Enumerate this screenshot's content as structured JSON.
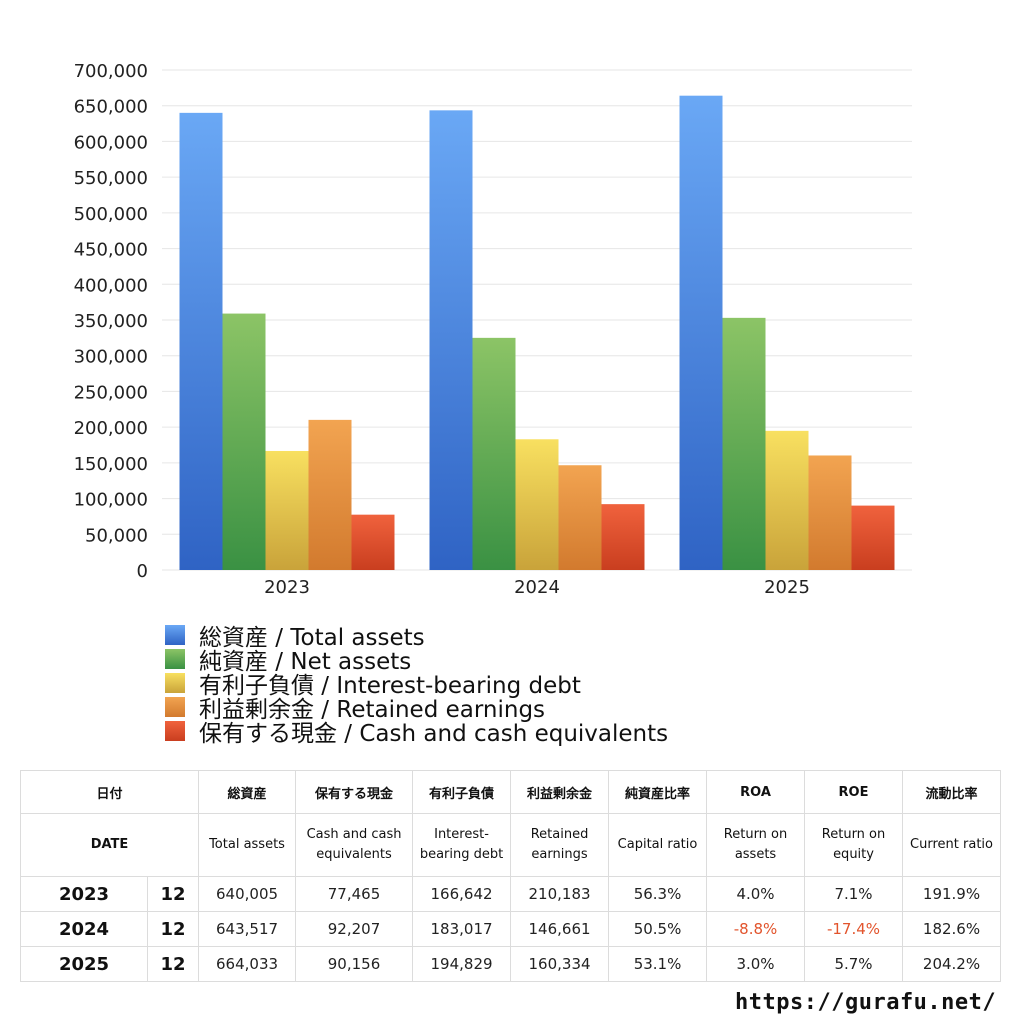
{
  "chart_data": {
    "type": "bar",
    "categories": [
      "2023",
      "2024",
      "2025"
    ],
    "series": [
      {
        "name": "総資産 / Total assets",
        "values": [
          640005,
          643517,
          664033
        ],
        "color_top": "#6aa8f5",
        "color_bottom": "#2f63c4"
      },
      {
        "name": "純資産 / Net assets",
        "values": [
          359000,
          325000,
          353000
        ],
        "color_top": "#8cc466",
        "color_bottom": "#3a9143"
      },
      {
        "name": "有利子負債 / Interest-bearing debt",
        "values": [
          166642,
          183017,
          194829
        ],
        "color_top": "#f8e060",
        "color_bottom": "#c9a33a"
      },
      {
        "name": "利益剰余金 / Retained earnings",
        "values": [
          210183,
          146661,
          160334
        ],
        "color_top": "#f2a451",
        "color_bottom": "#d27a2e"
      },
      {
        "name": "保有する現金 /  Cash and cash equivalents",
        "values": [
          77465,
          92207,
          90156
        ],
        "color_top": "#f0623d",
        "color_bottom": "#c93e1f"
      }
    ],
    "ylim": [
      0,
      700000
    ],
    "yticks": [
      "0",
      "50,000",
      "100,000",
      "150,000",
      "200,000",
      "250,000",
      "300,000",
      "350,000",
      "400,000",
      "450,000",
      "500,000",
      "550,000",
      "600,000",
      "650,000",
      "700,000"
    ],
    "ytick_values": [
      0,
      50000,
      100000,
      150000,
      200000,
      250000,
      300000,
      350000,
      400000,
      450000,
      500000,
      550000,
      600000,
      650000,
      700000
    ],
    "grid": true,
    "legend_position": "bottom"
  },
  "table": {
    "header_jp": {
      "date": "日付",
      "total_assets": "総資産",
      "cash": "保有する現金",
      "debt": "有利子負債",
      "retained": "利益剰余金",
      "capital_ratio": "純資産比率",
      "roa": "ROA",
      "roe": "ROE",
      "current_ratio": "流動比率"
    },
    "header_en": {
      "date": "DATE",
      "total_assets": "Total assets",
      "cash": "Cash and cash equivalents",
      "debt": "Interest-bearing debt",
      "retained": "Retained earnings",
      "capital_ratio": "Capital ratio",
      "roa": "Return on assets",
      "roe": "Return on equity",
      "current_ratio": "Current ratio"
    },
    "rows": [
      {
        "year": "2023",
        "month": "12",
        "total_assets": "640,005",
        "cash": "77,465",
        "debt": "166,642",
        "retained": "210,183",
        "capital_ratio": "56.3%",
        "roa": "4.0%",
        "roe": "7.1%",
        "current_ratio": "191.9%"
      },
      {
        "year": "2024",
        "month": "12",
        "total_assets": "643,517",
        "cash": "92,207",
        "debt": "183,017",
        "retained": "146,661",
        "capital_ratio": "50.5%",
        "roa": "-8.8%",
        "roe": "-17.4%",
        "current_ratio": "182.6%"
      },
      {
        "year": "2025",
        "month": "12",
        "total_assets": "664,033",
        "cash": "90,156",
        "debt": "194,829",
        "retained": "160,334",
        "capital_ratio": "53.1%",
        "roa": "3.0%",
        "roe": "5.7%",
        "current_ratio": "204.2%"
      }
    ],
    "negative_color": "#e2542c"
  },
  "footer": {
    "url": "https://gurafu.net/"
  }
}
